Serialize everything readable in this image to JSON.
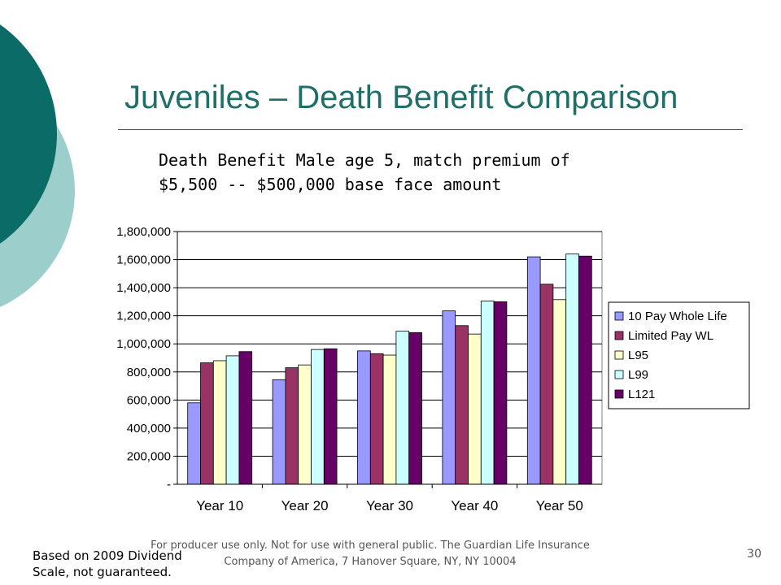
{
  "slide": {
    "title": "Juveniles – Death Benefit Comparison",
    "subtitle_line1": "Death Benefit Male age 5, match premium of",
    "subtitle_line2": "$5,500 -- $500,000 base face amount",
    "footer_left_line1": "Based on 2009 Dividend",
    "footer_left_line2": "Scale, not guaranteed.",
    "footer_center_line1": "For producer use only.  Not for use with general public.  The Guardian Life Insurance",
    "footer_center_line2": "Company of America, 7 Hanover Square, NY, NY 10004",
    "page_number": "30"
  },
  "colors": {
    "decor_dark": "#0b6b66",
    "decor_light": "#9ccfcc",
    "title": "#1f6f68"
  },
  "chart_data": {
    "type": "bar",
    "title": "",
    "xlabel": "",
    "ylabel": "",
    "categories": [
      "Year 10",
      "Year 20",
      "Year 30",
      "Year 40",
      "Year 50"
    ],
    "ylim": [
      0,
      1800000
    ],
    "yticks": [
      0,
      200000,
      400000,
      600000,
      800000,
      1000000,
      1200000,
      1400000,
      1600000,
      1800000
    ],
    "ytick_labels": [
      "-",
      "200,000",
      "400,000",
      "600,000",
      "800,000",
      "1,000,000",
      "1,200,000",
      "1,400,000",
      "1,600,000",
      "1,800,000"
    ],
    "grid": true,
    "legend_position": "right",
    "series": [
      {
        "name": "10 Pay Whole Life",
        "color": "#9999ff",
        "values": [
          580000,
          745000,
          950000,
          1235000,
          1620000
        ]
      },
      {
        "name": "Limited Pay WL",
        "color": "#993366",
        "values": [
          865000,
          830000,
          930000,
          1130000,
          1425000
        ]
      },
      {
        "name": "L95",
        "color": "#ffffcc",
        "values": [
          880000,
          850000,
          920000,
          1070000,
          1315000
        ]
      },
      {
        "name": "L99",
        "color": "#ccffff",
        "values": [
          915000,
          960000,
          1090000,
          1305000,
          1640000
        ]
      },
      {
        "name": "L121",
        "color": "#660066",
        "values": [
          945000,
          965000,
          1080000,
          1300000,
          1625000
        ]
      }
    ]
  }
}
